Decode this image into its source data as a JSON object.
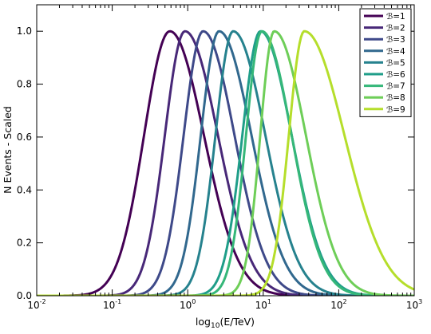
{
  "chart_data": {
    "type": "line",
    "title": "",
    "xlabel": {
      "base": "log",
      "sub": "10",
      "rest": "(E/TeV)"
    },
    "ylabel": "N Events - Scaled",
    "x_scale": "log",
    "xlim": [
      0.01,
      1000
    ],
    "ylim": [
      0.0,
      1.1
    ],
    "x_ticks": [
      {
        "mantissa": "10",
        "exp": "-2",
        "value": 0.01
      },
      {
        "mantissa": "10",
        "exp": "-1",
        "value": 0.1
      },
      {
        "mantissa": "10",
        "exp": "0",
        "value": 1
      },
      {
        "mantissa": "10",
        "exp": "1",
        "value": 10
      },
      {
        "mantissa": "10",
        "exp": "2",
        "value": 100
      },
      {
        "mantissa": "10",
        "exp": "3",
        "value": 1000
      }
    ],
    "y_ticks": [
      "0.0",
      "0.2",
      "0.4",
      "0.6",
      "0.8",
      "1.0"
    ],
    "legend_position": "top-right",
    "grid": false,
    "series": [
      {
        "name": "ℬ=1",
        "color": "#440154",
        "peak_E": 0.58,
        "x": [
          0.06,
          0.1,
          0.2,
          0.3,
          0.58,
          1.0,
          2.0,
          4.0,
          8.0,
          15.0,
          30.0
        ],
        "y": [
          0.0,
          0.07,
          0.4,
          0.72,
          1.0,
          0.86,
          0.5,
          0.2,
          0.05,
          0.01,
          0.0
        ]
      },
      {
        "name": "ℬ=2",
        "color": "#482878",
        "peak_E": 0.92,
        "x": [
          0.1,
          0.2,
          0.4,
          0.6,
          0.92,
          1.5,
          3.0,
          6.0,
          12.0,
          25.0,
          50.0
        ],
        "y": [
          0.0,
          0.07,
          0.42,
          0.74,
          1.0,
          0.88,
          0.5,
          0.2,
          0.05,
          0.01,
          0.0
        ]
      },
      {
        "name": "ℬ=3",
        "color": "#3e4989",
        "peak_E": 1.6,
        "x": [
          0.2,
          0.4,
          0.7,
          1.0,
          1.6,
          2.5,
          5.0,
          10.0,
          20.0,
          40.0,
          80.0
        ],
        "y": [
          0.0,
          0.08,
          0.4,
          0.7,
          1.0,
          0.88,
          0.5,
          0.2,
          0.05,
          0.01,
          0.0
        ]
      },
      {
        "name": "ℬ=4",
        "color": "#31688e",
        "peak_E": 2.6,
        "x": [
          0.4,
          0.7,
          1.2,
          1.8,
          2.6,
          4.0,
          8.0,
          15.0,
          30.0,
          60.0,
          150.0
        ],
        "y": [
          0.0,
          0.1,
          0.42,
          0.74,
          1.0,
          0.9,
          0.52,
          0.22,
          0.06,
          0.01,
          0.0
        ]
      },
      {
        "name": "ℬ=5",
        "color": "#26828e",
        "peak_E": 4.0,
        "x": [
          0.6,
          1.0,
          2.0,
          3.0,
          4.0,
          6.0,
          12.0,
          25.0,
          50.0,
          100.0,
          250.0
        ],
        "y": [
          0.0,
          0.08,
          0.45,
          0.82,
          1.0,
          0.9,
          0.52,
          0.2,
          0.06,
          0.01,
          0.0
        ]
      },
      {
        "name": "ℬ=6",
        "color": "#1f9e89",
        "peak_E": 9.2,
        "x": [
          1.5,
          2.5,
          4.0,
          6.0,
          9.2,
          14.0,
          25.0,
          50.0,
          100.0,
          200.0,
          400.0
        ],
        "y": [
          0.0,
          0.08,
          0.35,
          0.7,
          1.0,
          0.9,
          0.55,
          0.22,
          0.06,
          0.01,
          0.0
        ]
      },
      {
        "name": "ℬ=7",
        "color": "#35b779",
        "peak_E": 9.6,
        "x": [
          1.8,
          3.0,
          5.0,
          7.0,
          9.6,
          14.0,
          25.0,
          50.0,
          100.0,
          200.0,
          400.0
        ],
        "y": [
          0.0,
          0.1,
          0.42,
          0.75,
          1.0,
          0.9,
          0.55,
          0.22,
          0.06,
          0.01,
          0.0
        ]
      },
      {
        "name": "ℬ=8",
        "color": "#6ece58",
        "peak_E": 14.0,
        "x": [
          3.0,
          5.0,
          8.0,
          11.0,
          14.0,
          20.0,
          40.0,
          80.0,
          150.0,
          300.0,
          600.0
        ],
        "y": [
          0.0,
          0.1,
          0.45,
          0.8,
          1.0,
          0.92,
          0.55,
          0.22,
          0.07,
          0.01,
          0.0
        ]
      },
      {
        "name": "ℬ=9",
        "color": "#b5de2b",
        "peak_E": 35.0,
        "x": [
          9.0,
          14.0,
          20.0,
          26.0,
          35.0,
          60.0,
          120.0,
          250.0,
          500.0,
          1000.0
        ],
        "y": [
          0.0,
          0.15,
          0.5,
          0.82,
          1.0,
          0.9,
          0.6,
          0.3,
          0.1,
          0.03
        ]
      }
    ]
  }
}
